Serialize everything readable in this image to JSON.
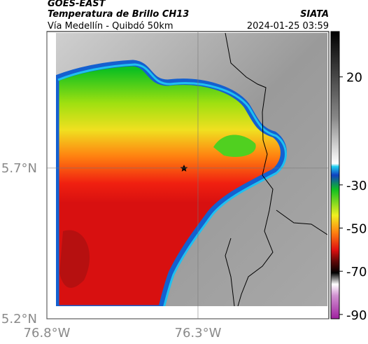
{
  "header": {
    "source": "GOES-EAST",
    "title": "Temperatura de Brillo CH13",
    "subtitle": "Vía Medellín - Quibdó 50km",
    "agency": "SIATA",
    "timestamp": "2024-01-25 03:59"
  },
  "map": {
    "xlim": [
      -76.8,
      -75.867
    ],
    "ylim": [
      5.2,
      6.153
    ],
    "xticks": [
      {
        "value": -76.8,
        "label": "76.8°W"
      },
      {
        "value": -76.3,
        "label": "76.3°W"
      }
    ],
    "yticks": [
      {
        "value": 5.2,
        "label": "5.2°N"
      },
      {
        "value": 5.7,
        "label": "5.7°N"
      }
    ],
    "grid": true
  },
  "colorbar": {
    "clim": [
      -92,
      41
    ],
    "ticks": [
      20,
      -30,
      -50,
      -70,
      -90
    ]
  }
}
